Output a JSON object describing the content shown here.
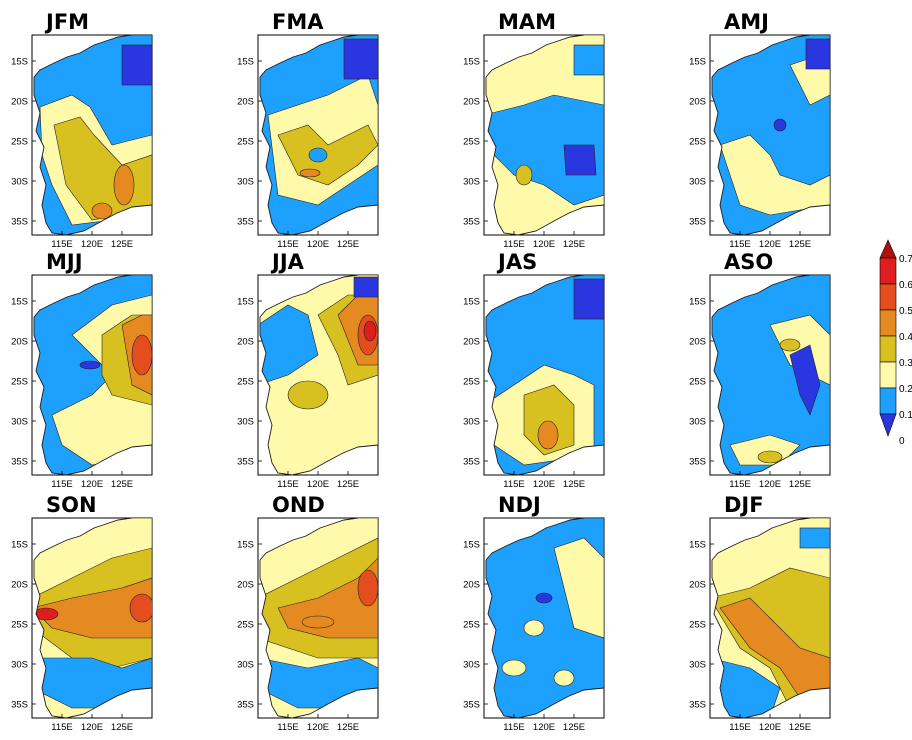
{
  "figure": {
    "lat_labels": [
      "15S",
      "20S",
      "25S",
      "30S",
      "35S"
    ],
    "lon_labels": [
      "115E",
      "120E",
      "125E"
    ],
    "lon_range": [
      112,
      129
    ],
    "lat_range": [
      -37,
      -12
    ]
  },
  "panels": [
    {
      "title": "JFM",
      "coast": "#1c1c1c",
      "fill": {
        "base": "#1ea0ff",
        "mid": "#fffaaa",
        "warm": "#d8c020",
        "orange": "#e48a20"
      }
    },
    {
      "title": "FMA"
    },
    {
      "title": "MAM"
    },
    {
      "title": "AMJ"
    },
    {
      "title": "MJJ"
    },
    {
      "title": "JJA"
    },
    {
      "title": "JAS"
    },
    {
      "title": "ASO"
    },
    {
      "title": "SON"
    },
    {
      "title": "OND"
    },
    {
      "title": "NDJ"
    },
    {
      "title": "DJF"
    }
  ],
  "colorbar": {
    "labels": [
      "0.7",
      "0.6",
      "0.5",
      "0.4",
      "0.3",
      "0.2",
      "0.1",
      "0"
    ],
    "colors": [
      "#2a37e0",
      "#1ea0ff",
      "#fffaaa",
      "#d8c020",
      "#e48a20",
      "#e44e1e",
      "#de1e1e",
      "#b01010"
    ]
  }
}
